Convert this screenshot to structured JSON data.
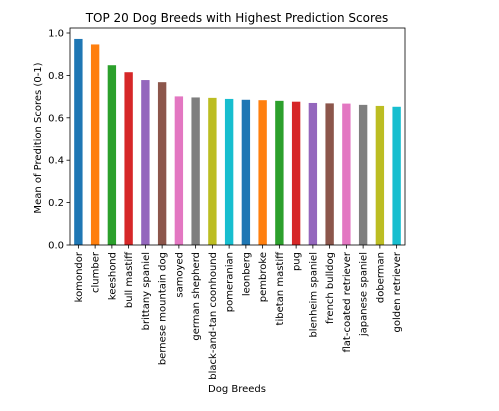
{
  "chart_data": {
    "type": "bar",
    "title": "TOP 20 Dog Breeds with Highest Prediction Scores",
    "xlabel": "Dog Breeds",
    "ylabel": "Mean of Predition Scores (0-1)",
    "ylim": [
      0,
      1.0
    ],
    "yticks": [
      "0.0",
      "0.2",
      "0.4",
      "0.6",
      "0.8",
      "1.0"
    ],
    "grid": false,
    "categories": [
      "komondor",
      "clumber",
      "keeshond",
      "bull mastiff",
      "brittany spaniel",
      "bernese mountain dog",
      "samoyed",
      "german shepherd",
      "black-and-tan coonhound",
      "pomeranian",
      "leonberg",
      "pembroke",
      "tibetan mastiff",
      "pug",
      "blenheim spaniel",
      "french bulldog",
      "flat-coated retriever",
      "japanese spaniel",
      "doberman",
      "golden retriever"
    ],
    "values": [
      0.972,
      0.946,
      0.848,
      0.815,
      0.778,
      0.768,
      0.701,
      0.696,
      0.694,
      0.689,
      0.685,
      0.683,
      0.68,
      0.676,
      0.67,
      0.668,
      0.667,
      0.661,
      0.656,
      0.652
    ],
    "colors": [
      "#1f77b4",
      "#ff7f0e",
      "#2ca02c",
      "#d62728",
      "#9467bd",
      "#8c564b",
      "#e377c2",
      "#7f7f7f",
      "#bcbd22",
      "#17becf",
      "#1f77b4",
      "#ff7f0e",
      "#2ca02c",
      "#d62728",
      "#9467bd",
      "#8c564b",
      "#e377c2",
      "#7f7f7f",
      "#bcbd22",
      "#17becf"
    ]
  }
}
